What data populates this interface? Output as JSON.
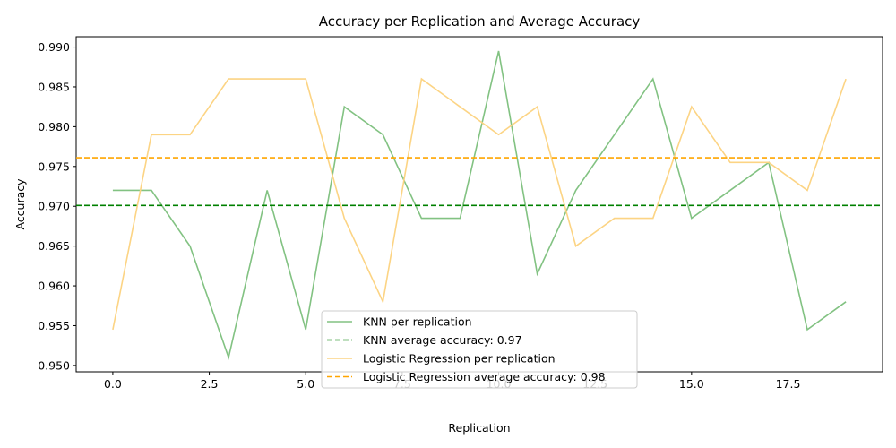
{
  "chart_data": {
    "type": "line",
    "title": "Accuracy per Replication and Average Accuracy",
    "xlabel": "Replication",
    "ylabel": "Accuracy",
    "xlim": [
      -0.95,
      19.95
    ],
    "ylim": [
      0.9492,
      0.9913
    ],
    "xticks": [
      0.0,
      2.5,
      5.0,
      7.5,
      10.0,
      12.5,
      15.0,
      17.5
    ],
    "xtick_labels": [
      "0.0",
      "2.5",
      "5.0",
      "7.5",
      "10.0",
      "12.5",
      "15.0",
      "17.5"
    ],
    "yticks": [
      0.95,
      0.955,
      0.96,
      0.965,
      0.97,
      0.975,
      0.98,
      0.985,
      0.99
    ],
    "ytick_labels": [
      "0.950",
      "0.955",
      "0.960",
      "0.965",
      "0.970",
      "0.975",
      "0.980",
      "0.985",
      "0.990"
    ],
    "grid": false,
    "legend_position": "bottom-center",
    "x": [
      0,
      1,
      2,
      3,
      4,
      5,
      6,
      7,
      8,
      9,
      10,
      11,
      12,
      13,
      14,
      15,
      16,
      17,
      18,
      19
    ],
    "series": [
      {
        "name": "KNN per replication",
        "style": "solid",
        "color": "#82c282",
        "values": [
          0.972,
          0.972,
          0.965,
          0.951,
          0.972,
          0.9545,
          0.9825,
          0.979,
          0.9685,
          0.9685,
          0.9895,
          0.9615,
          0.972,
          0.979,
          0.986,
          0.9685,
          0.972,
          0.9755,
          0.9545,
          0.958
        ]
      },
      {
        "name": "KNN average accuracy: 0.97",
        "style": "dashed",
        "color": "#008000",
        "constant": 0.9701
      },
      {
        "name": "Logistic Regression per replication",
        "style": "solid",
        "color": "#fcd484",
        "values": [
          0.9545,
          0.979,
          0.979,
          0.986,
          0.986,
          0.986,
          0.9685,
          0.958,
          0.986,
          0.9825,
          0.979,
          0.9825,
          0.965,
          0.9685,
          0.9685,
          0.9825,
          0.9755,
          0.9755,
          0.972,
          0.986
        ]
      },
      {
        "name": "Logistic Regression average accuracy: 0.98",
        "style": "dashed",
        "color": "#ffa500",
        "constant": 0.9761
      }
    ]
  }
}
